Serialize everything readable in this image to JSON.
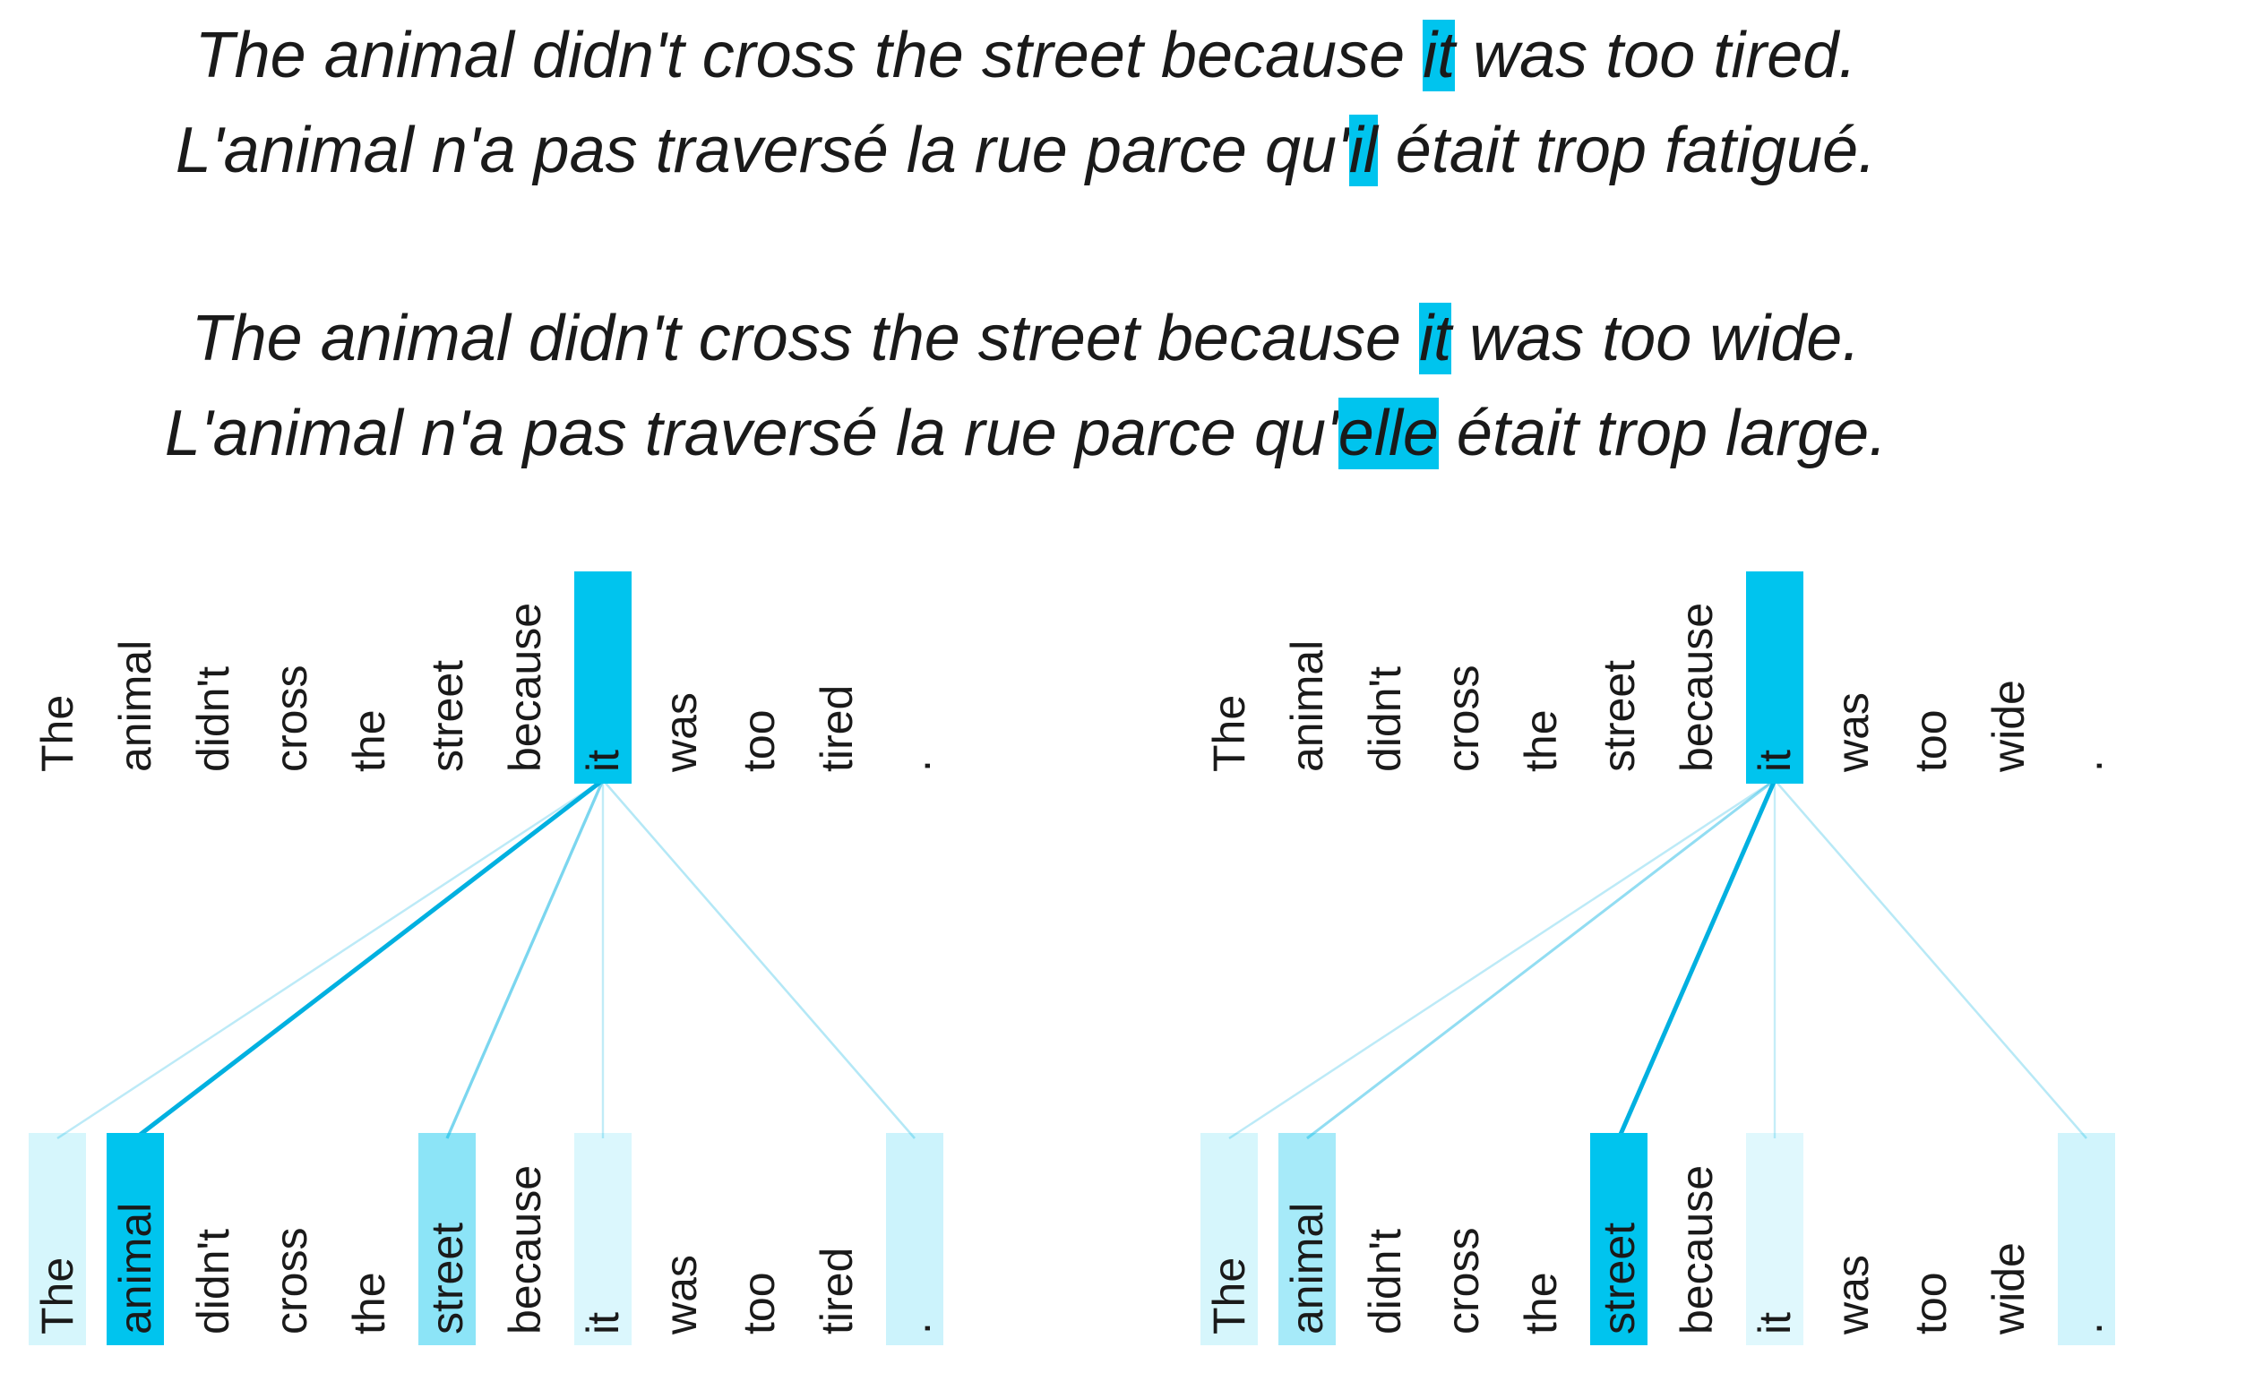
{
  "sentences": [
    {
      "pre": "The animal didn't cross the street because ",
      "hl": "it",
      "post": " was too tired."
    },
    {
      "pre": "L'animal n'a pas traversé la rue parce qu'",
      "hl": "il",
      "post": " était trop fatigué."
    },
    {
      "pre": "The animal didn't cross the street because ",
      "hl": "it",
      "post": " was too wide."
    },
    {
      "pre": "L'animal n'a pas traversé la rue parce qu'",
      "hl": "elle",
      "post": " était trop large."
    }
  ],
  "colors": {
    "highlight": "#00c4ee",
    "line": "#00b0e0",
    "text": "#1a1a1a"
  },
  "panels": [
    {
      "tokens": [
        "The",
        "animal",
        "didn't",
        "cross",
        "the",
        "street",
        "because",
        "it",
        "was",
        "too",
        "tired",
        "."
      ],
      "query_index": 7,
      "attention": [
        0.16,
        1.0,
        0.0,
        0.0,
        0.0,
        0.45,
        0.0,
        0.14,
        0.0,
        0.0,
        0.0,
        0.2
      ]
    },
    {
      "tokens": [
        "The",
        "animal",
        "didn't",
        "cross",
        "the",
        "street",
        "because",
        "it",
        "was",
        "too",
        "wide",
        "."
      ],
      "query_index": 7,
      "attention": [
        0.16,
        0.35,
        0.0,
        0.0,
        0.0,
        1.0,
        0.0,
        0.12,
        0.0,
        0.0,
        0.0,
        0.18
      ]
    }
  ]
}
